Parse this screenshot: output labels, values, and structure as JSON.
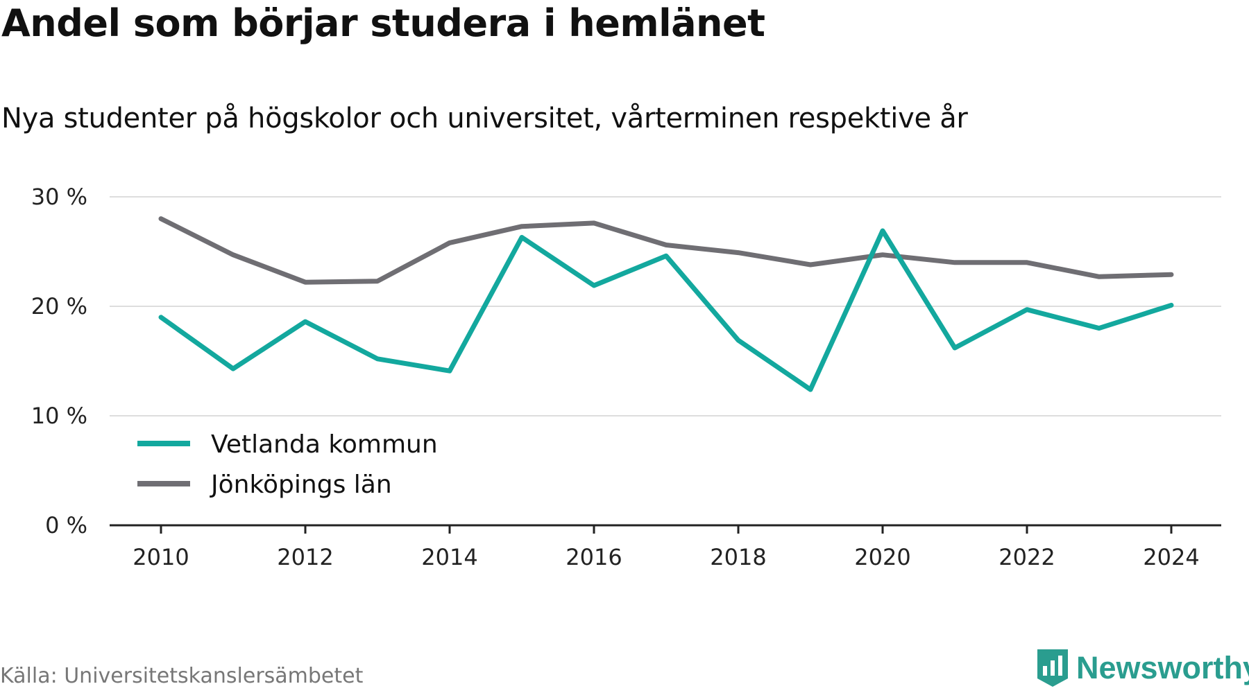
{
  "chart_data": {
    "type": "line",
    "title": "Andel som börjar studera i hemlänet",
    "subtitle": "Nya studenter på högskolor och universitet, vårterminen respektive år",
    "x": [
      2010,
      2011,
      2012,
      2013,
      2014,
      2015,
      2016,
      2017,
      2018,
      2019,
      2020,
      2021,
      2022,
      2023,
      2024
    ],
    "series": [
      {
        "name": "Vetlanda kommun",
        "color": "#13a89e",
        "values": [
          19.0,
          14.3,
          18.6,
          15.2,
          14.1,
          26.3,
          21.9,
          24.6,
          16.9,
          12.4,
          26.9,
          16.2,
          19.7,
          18.0,
          20.1
        ]
      },
      {
        "name": "Jönköpings län",
        "color": "#6f6e73",
        "values": [
          28.0,
          24.7,
          22.2,
          22.3,
          25.8,
          27.3,
          27.6,
          25.6,
          24.9,
          23.8,
          24.7,
          24.0,
          24.0,
          22.7,
          22.9
        ]
      }
    ],
    "ylim": [
      0,
      30
    ],
    "yticks": [
      0,
      10,
      20,
      30
    ],
    "ytick_labels": [
      "0 %",
      "10 %",
      "20 %",
      "30 %"
    ],
    "xticks": [
      2010,
      2012,
      2014,
      2016,
      2018,
      2020,
      2022,
      2024
    ],
    "xtick_labels": [
      "2010",
      "2012",
      "2014",
      "2016",
      "2018",
      "2020",
      "2022",
      "2024"
    ],
    "grid": true,
    "legend_position": "bottom-left"
  },
  "source": "Källa: Universitetskanslersämbetet",
  "brand": {
    "name": "Newsworthy",
    "icon": "newsworthy-logo-icon",
    "color": "#2a9d8f"
  }
}
